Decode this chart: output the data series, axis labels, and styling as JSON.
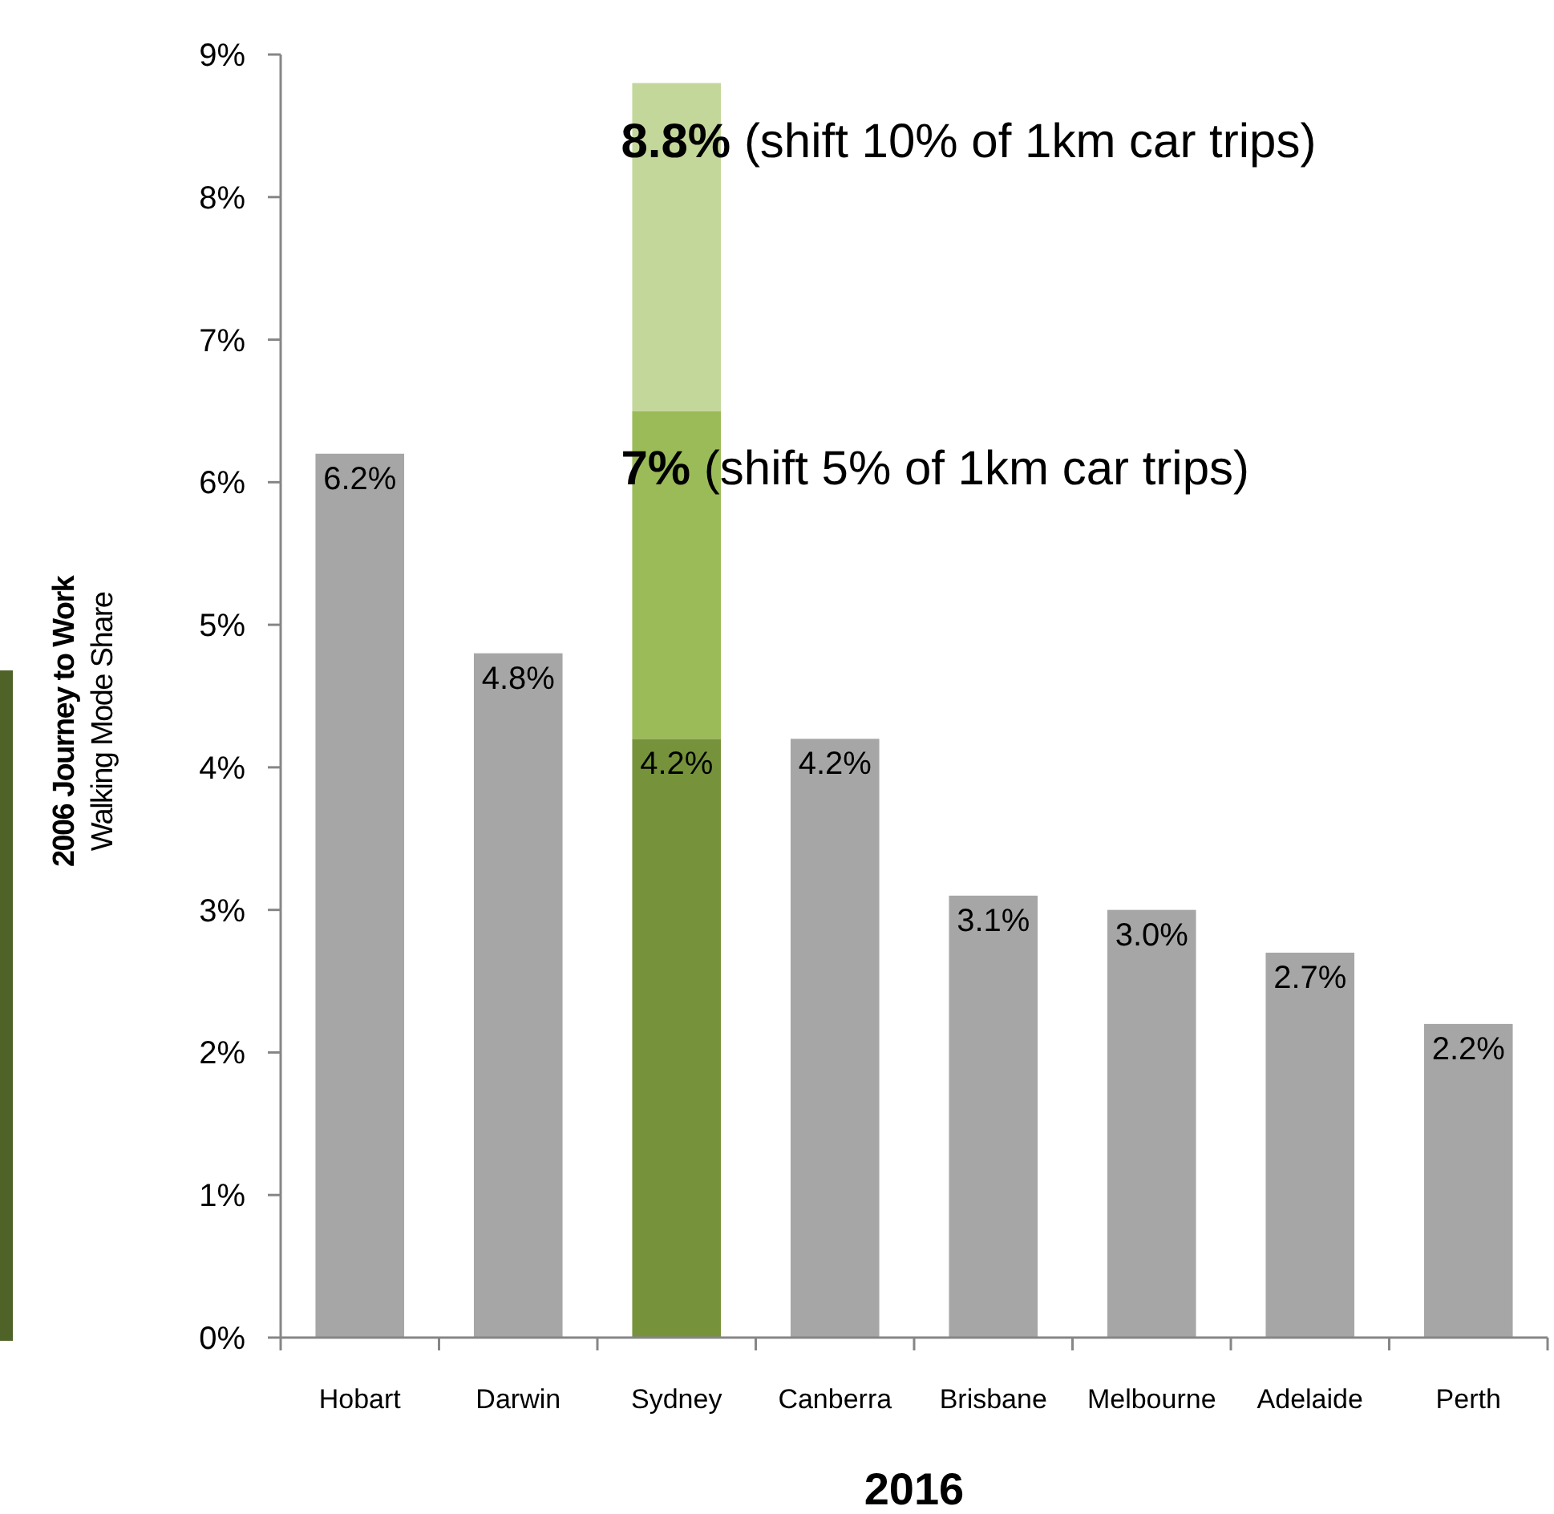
{
  "chart_data": {
    "type": "bar",
    "stacked": true,
    "xlabel": "2016",
    "ylabel": "2006 Journey to Work\nWalking Mode Share",
    "categories": [
      "Hobart",
      "Darwin",
      "Sydney",
      "Canberra",
      "Brisbane",
      "Melbourne",
      "Adelaide",
      "Perth"
    ],
    "series": [
      {
        "colors": [
          "#a6a6a6",
          "#a6a6a6",
          "#76933c",
          "#a6a6a6",
          "#a6a6a6",
          "#a6a6a6",
          "#a6a6a6",
          "#a6a6a6"
        ],
        "values": [
          6.2,
          4.8,
          4.2,
          4.2,
          3.1,
          3.0,
          2.7,
          2.2
        ],
        "value_labels": [
          "6.2%",
          "4.8%",
          "4.2%",
          "4.2%",
          "3.1%",
          "3.0%",
          "2.7%",
          "2.2%"
        ]
      },
      {
        "color": "#9bbb59",
        "values": [
          null,
          null,
          2.3,
          null,
          null,
          null,
          null,
          null
        ]
      },
      {
        "color": "#c4d79b",
        "values": [
          null,
          null,
          2.3,
          null,
          null,
          null,
          null,
          null
        ]
      }
    ],
    "ylim": [
      0,
      9
    ],
    "yticks": [
      {
        "value": 0,
        "label": "0%"
      },
      {
        "value": 1,
        "label": "1%"
      },
      {
        "value": 2,
        "label": "2%"
      },
      {
        "value": 3,
        "label": "3%"
      },
      {
        "value": 4,
        "label": "4%"
      },
      {
        "value": 5,
        "label": "5%"
      },
      {
        "value": 6,
        "label": "6%"
      },
      {
        "value": 7,
        "label": "7%"
      },
      {
        "value": 8,
        "label": "8%"
      },
      {
        "value": 9,
        "label": "9%"
      }
    ],
    "annotations": [
      {
        "text": "8.8% (shift 10% of 1km car trips)",
        "x": "Sydney",
        "y": 8.8
      },
      {
        "text": "7% (shift 5% of 1km car trips)",
        "x": "Sydney",
        "y": 6.5
      }
    ]
  }
}
